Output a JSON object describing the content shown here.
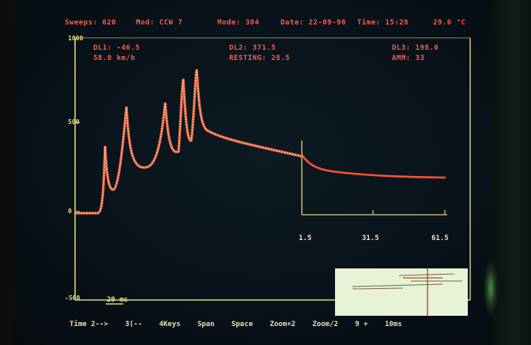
{
  "status_bar": {
    "sweeps": "Sweeps: 620",
    "method": "Mod: CCW 7",
    "mode": "Mode: 304",
    "date": "Date: 22-09-98",
    "time": "Time: 15:28",
    "temperature": "29.6 °C"
  },
  "readouts": {
    "left_top": "DL1:   -46.5",
    "left_bottom": "58.0   km/h",
    "center_top": "DL2:   371.5",
    "center_bottom": "RESTING:   28.5",
    "right_top": "DL3:   198.0",
    "right_bottom": "AMM:   33"
  },
  "y_axis": {
    "top": "1000",
    "mid": "500",
    "zero": "0",
    "bottom": "-500"
  },
  "x_axis": {
    "ticks": [
      "1.5",
      "31.5",
      "61.5"
    ]
  },
  "scale_bar": "20 ms",
  "bottom_menu": [
    "Time 2-->",
    "3(--",
    "4Keys",
    "Span",
    "Space",
    "Zoom+2",
    "Zoom/2",
    "9 +",
    "10ms"
  ],
  "colors": {
    "axes": "#d8d470",
    "trace": "#ff6a40",
    "trace_highlight": "#ffd6b0",
    "text": "#ff5a4a",
    "panel": "#e8f2d6"
  }
}
